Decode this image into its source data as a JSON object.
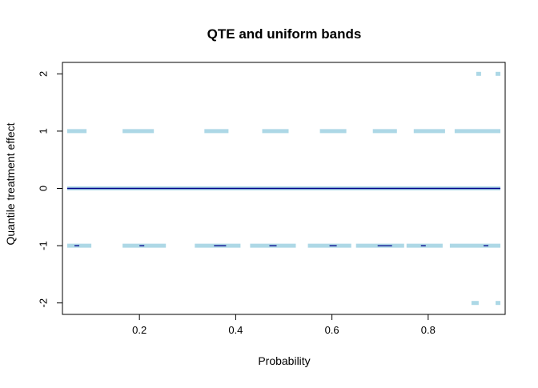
{
  "chart_data": {
    "type": "line",
    "title": "QTE and uniform bands",
    "xlabel": "Probability",
    "ylabel": "Quantile treatment effect",
    "xlim": [
      0.04,
      0.96
    ],
    "ylim": [
      -2.2,
      2.2
    ],
    "x_ticks": [
      0.2,
      0.4,
      0.6,
      0.8
    ],
    "x_tick_labels": [
      "0.2",
      "0.4",
      "0.6",
      "0.8"
    ],
    "y_ticks": [
      -2,
      -1,
      0,
      1,
      2
    ],
    "y_tick_labels": [
      "-2",
      "-1",
      "0",
      "1",
      "2"
    ],
    "grid": false,
    "colors": {
      "band": "#add8e6",
      "qte": "#00008b"
    },
    "series": [
      {
        "role": "upper_band",
        "color": "#add8e6",
        "segments": [
          [
            0.05,
            0.09,
            1
          ],
          [
            0.165,
            0.23,
            1
          ],
          [
            0.335,
            0.385,
            1
          ],
          [
            0.455,
            0.51,
            1
          ],
          [
            0.575,
            0.63,
            1
          ],
          [
            0.685,
            0.735,
            1
          ],
          [
            0.77,
            0.835,
            1
          ],
          [
            0.855,
            0.95,
            1
          ],
          [
            0.9,
            0.91,
            2
          ],
          [
            0.94,
            0.95,
            2
          ]
        ]
      },
      {
        "role": "lower_band",
        "color": "#add8e6",
        "segments": [
          [
            0.05,
            0.1,
            -1
          ],
          [
            0.165,
            0.255,
            -1
          ],
          [
            0.315,
            0.41,
            -1
          ],
          [
            0.43,
            0.525,
            -1
          ],
          [
            0.55,
            0.64,
            -1
          ],
          [
            0.65,
            0.75,
            -1
          ],
          [
            0.755,
            0.83,
            -1
          ],
          [
            0.845,
            0.95,
            -1
          ],
          [
            0.89,
            0.905,
            -2
          ],
          [
            0.94,
            0.95,
            -2
          ]
        ]
      },
      {
        "role": "center_band",
        "color": "#add8e6",
        "segments": [
          [
            0.05,
            0.95,
            0
          ]
        ]
      },
      {
        "role": "qte",
        "color": "#00008b",
        "segments": [
          [
            0.05,
            0.95,
            0
          ],
          [
            0.065,
            0.075,
            -1
          ],
          [
            0.2,
            0.21,
            -1
          ],
          [
            0.355,
            0.38,
            -1
          ],
          [
            0.47,
            0.485,
            -1
          ],
          [
            0.595,
            0.61,
            -1
          ],
          [
            0.695,
            0.725,
            -1
          ],
          [
            0.785,
            0.795,
            -1
          ],
          [
            0.915,
            0.925,
            -1
          ]
        ]
      }
    ]
  }
}
